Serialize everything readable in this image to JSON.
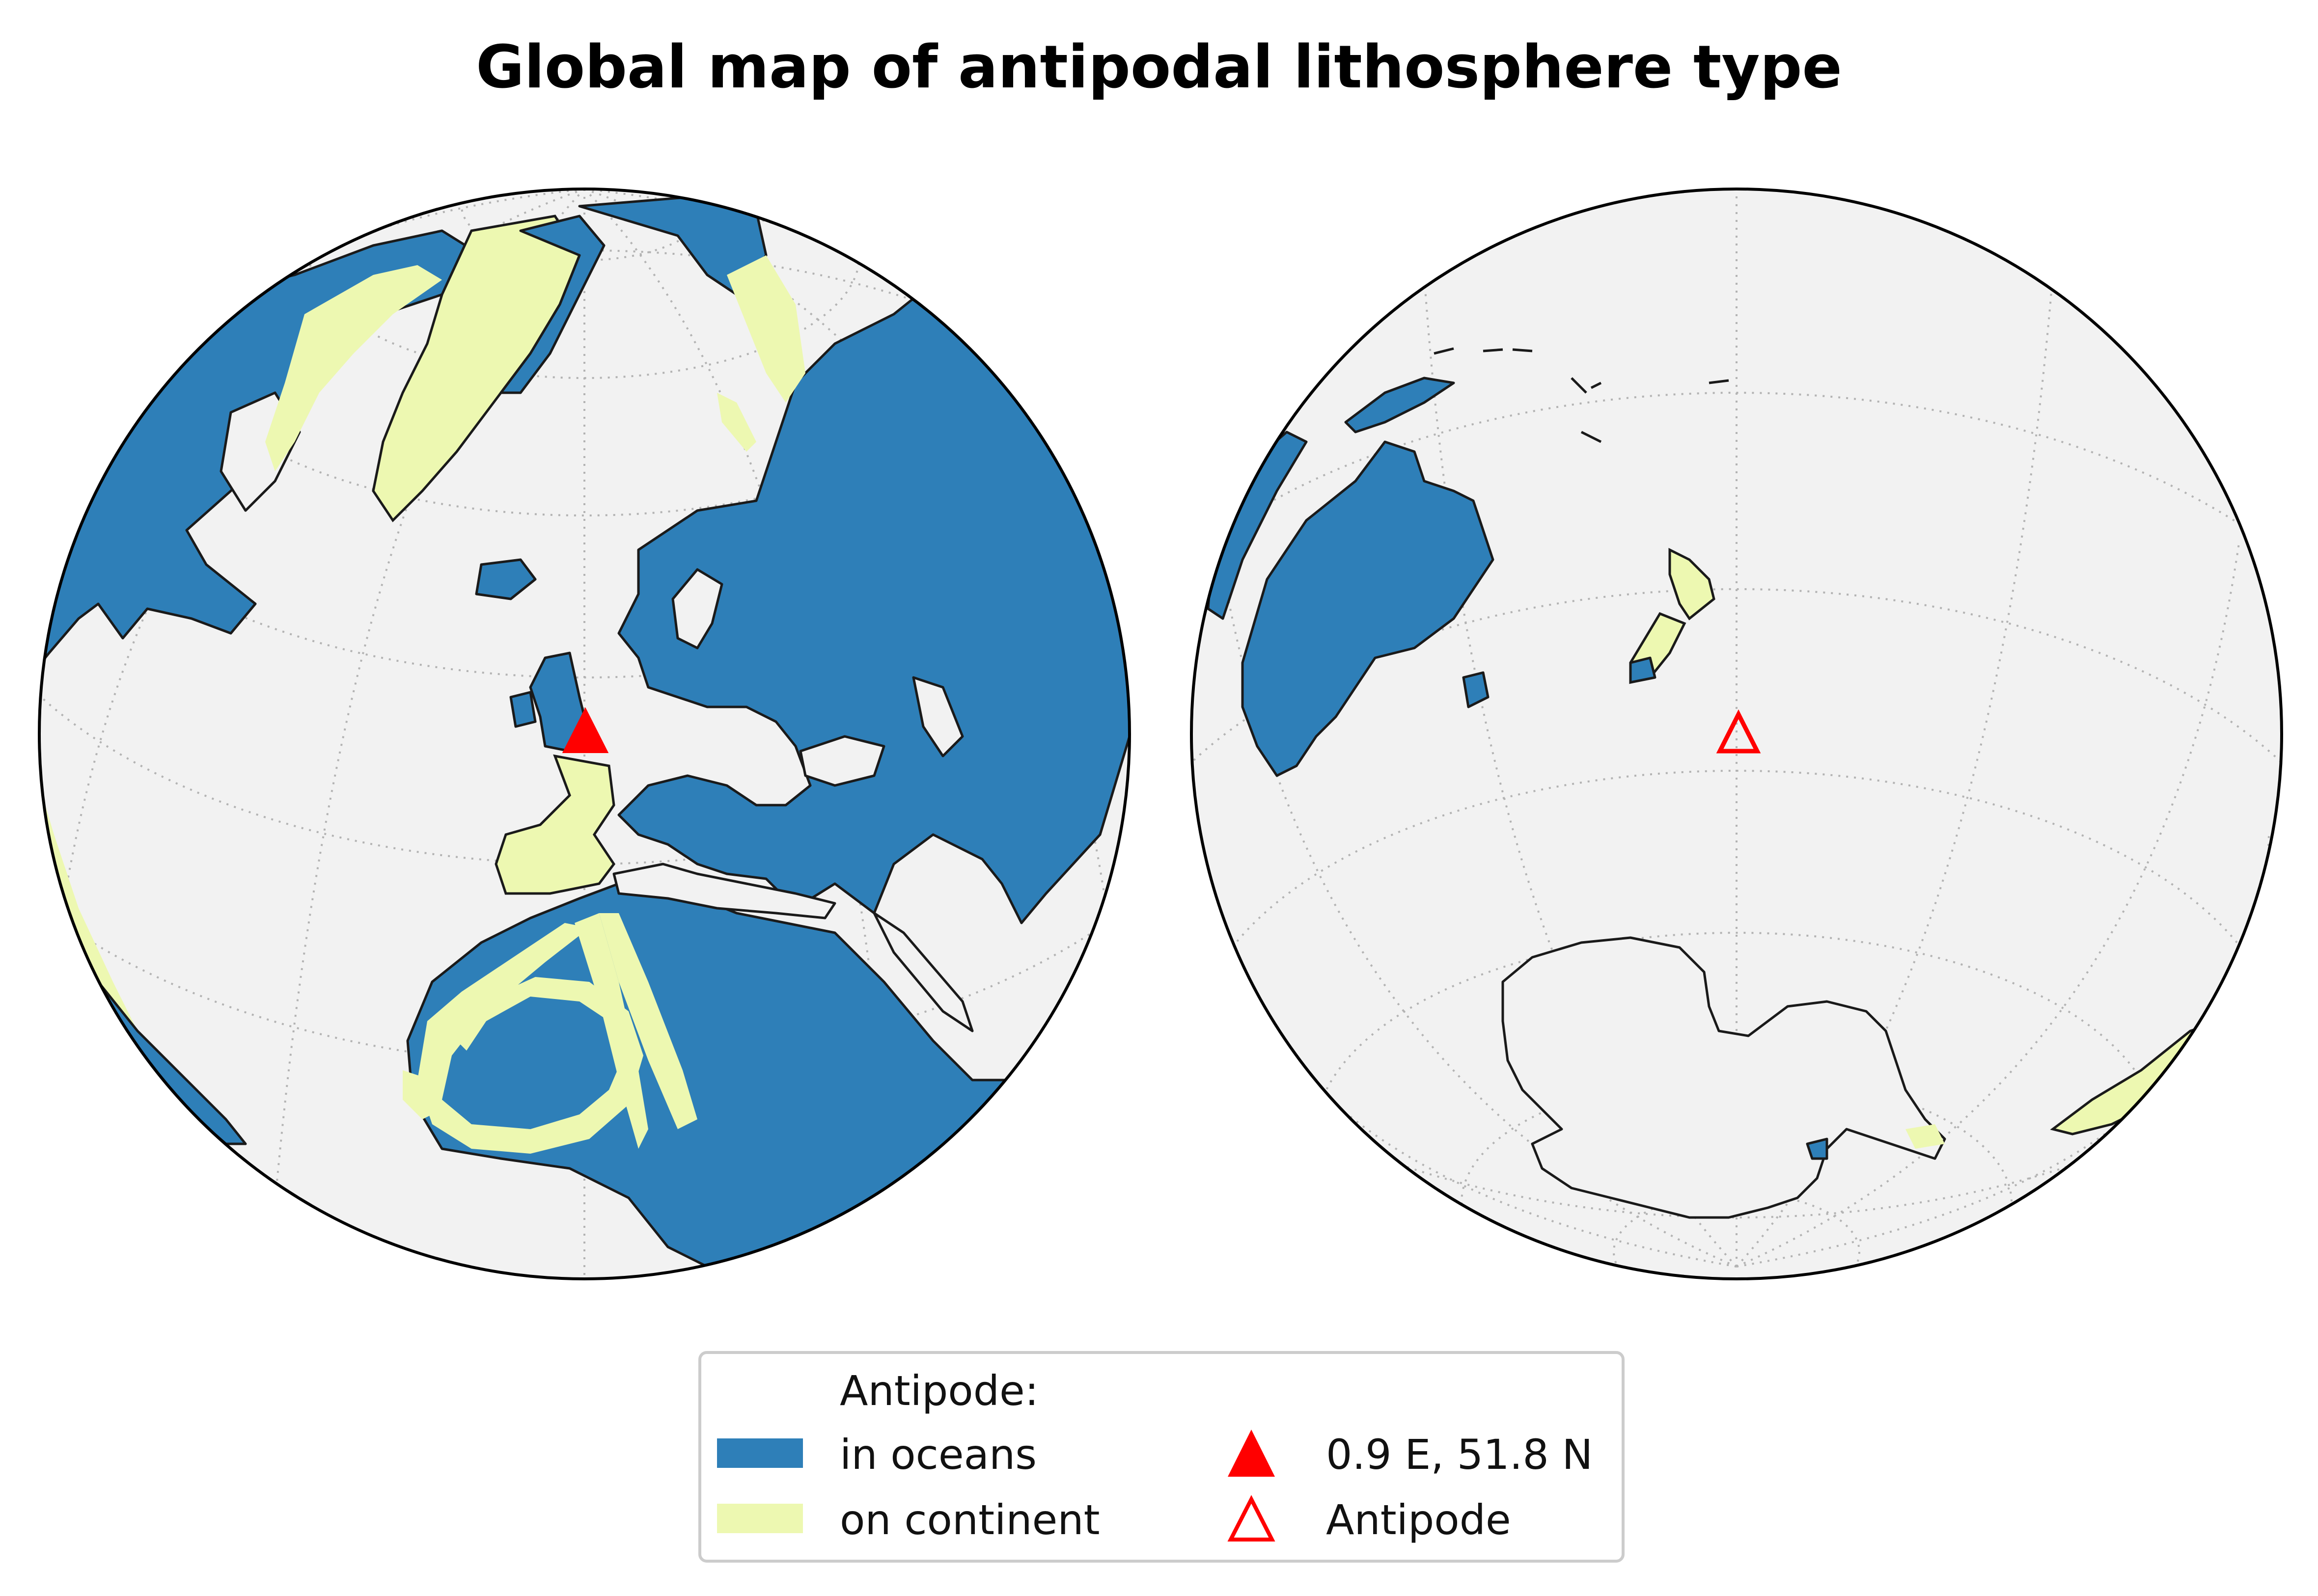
{
  "title": "Global map of antipodal lithosphere type",
  "colors": {
    "in_oceans": "#2e7fb8",
    "on_continent": "#edf8b1",
    "background_globe": "#f2f2f2",
    "coastline": "#1a1a1a",
    "marker": "#ff0000",
    "graticule": "#b3b3b3"
  },
  "point": {
    "lon": 0.9,
    "lat": 51.8,
    "label": "0.9 E, 51.8 N"
  },
  "antipode": {
    "lon": -179.1,
    "lat": -51.8,
    "label": "Antipode"
  },
  "legend": {
    "heading": "Antipode:",
    "items": [
      {
        "label": "in oceans",
        "color": "#2e7fb8",
        "kind": "patch"
      },
      {
        "label": "on continent",
        "color": "#edf8b1",
        "kind": "patch"
      },
      {
        "label": "0.9 E, 51.8 N",
        "color": "#ff0000",
        "kind": "filled-triangle"
      },
      {
        "label": "Antipode",
        "color": "#ff0000",
        "kind": "open-triangle"
      }
    ],
    "placement": "bottom-center"
  },
  "maps": [
    {
      "name": "left-globe",
      "center": "0.9 E, 51.8 N",
      "projection": "orthographic"
    },
    {
      "name": "right-globe",
      "center": "antipode",
      "projection": "orthographic"
    }
  ]
}
